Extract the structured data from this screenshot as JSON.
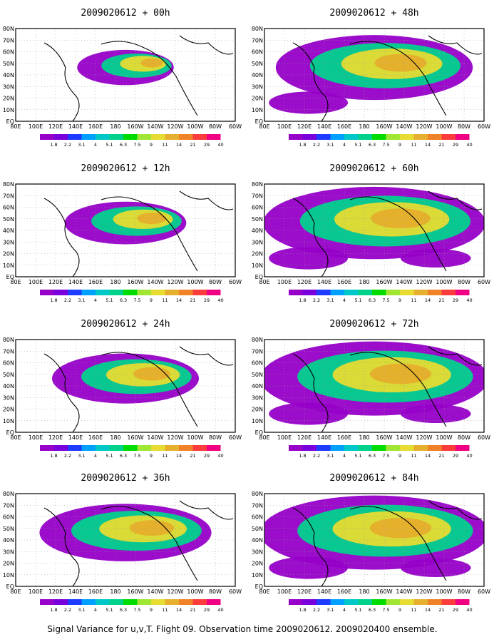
{
  "caption": "Signal Variance for u,v,T. Flight 09. Observation time 2009020612. 2009020400 ensemble.",
  "lon_labels": [
    "80E",
    "100E",
    "120E",
    "140E",
    "160E",
    "180",
    "160W",
    "140W",
    "120W",
    "100W",
    "80W",
    "60W"
  ],
  "lat_labels": [
    "80N",
    "70N",
    "60N",
    "50N",
    "40N",
    "30N",
    "20N",
    "10N",
    "EQ"
  ],
  "colorbar": {
    "levels": [
      "1.8",
      "2.2",
      "3.1",
      "4",
      "5.1",
      "6.3",
      "7.5",
      "9",
      "11",
      "14",
      "21",
      "29",
      "40"
    ],
    "colors": [
      "#9600c8",
      "#7800dc",
      "#1e3cff",
      "#00a0ff",
      "#00c8c8",
      "#00d28c",
      "#00dc00",
      "#a0e632",
      "#e6dc32",
      "#e6af2d",
      "#f08228",
      "#fa3c3c",
      "#f00082"
    ]
  },
  "panels": [
    {
      "title": "2009020612 + 00h"
    },
    {
      "title": "2009020612 + 48h"
    },
    {
      "title": "2009020612 + 12h"
    },
    {
      "title": "2009020612 + 60h"
    },
    {
      "title": "2009020612 + 24h"
    },
    {
      "title": "2009020612 + 72h"
    },
    {
      "title": "2009020612 + 36h"
    },
    {
      "title": "2009020612 + 84h"
    }
  ]
}
